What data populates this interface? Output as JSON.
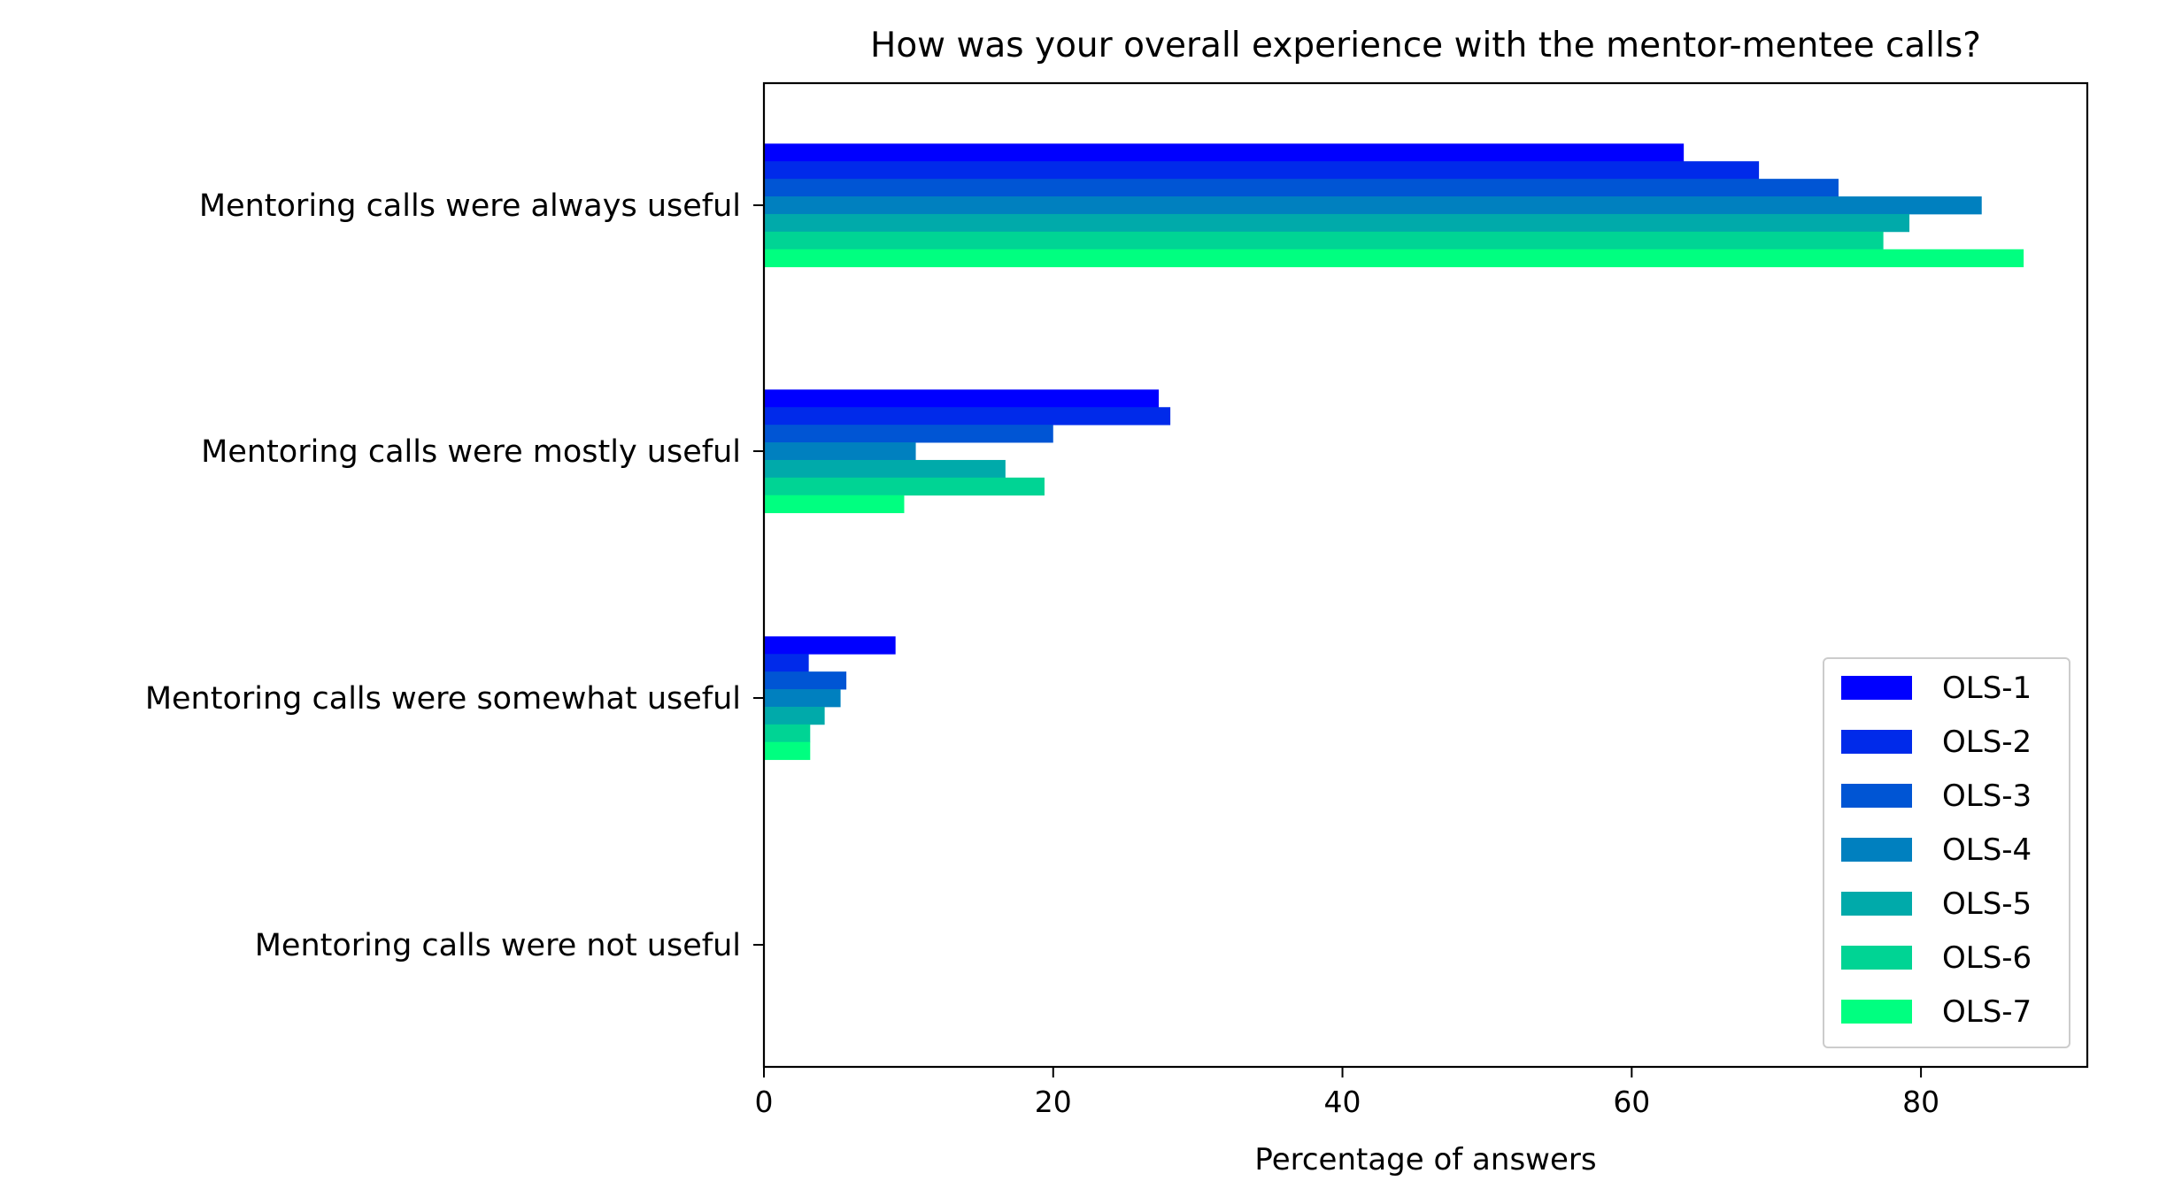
{
  "chart_data": {
    "type": "bar",
    "orientation": "horizontal",
    "title": "How was your overall experience with the mentor-mentee calls?",
    "xlabel": "Percentage of answers",
    "ylabel": "",
    "xlim": [
      0,
      91.5
    ],
    "xticks": [
      0,
      20,
      40,
      60,
      80
    ],
    "grid": false,
    "legend_position": "lower-right",
    "categories": [
      "Mentoring calls were always useful",
      "Mentoring calls were mostly useful",
      "Mentoring calls were somewhat useful",
      "Mentoring calls were not useful"
    ],
    "series": [
      {
        "name": "OLS-1",
        "color": "#0000ff",
        "values": [
          63.6,
          27.3,
          9.1,
          0
        ]
      },
      {
        "name": "OLS-2",
        "color": "#002aea",
        "values": [
          68.8,
          28.1,
          3.1,
          0
        ]
      },
      {
        "name": "OLS-3",
        "color": "#0055d4",
        "values": [
          74.3,
          20.0,
          5.7,
          0
        ]
      },
      {
        "name": "OLS-4",
        "color": "#0080bf",
        "values": [
          84.2,
          10.5,
          5.3,
          0
        ]
      },
      {
        "name": "OLS-5",
        "color": "#00aaaa",
        "values": [
          79.2,
          16.7,
          4.2,
          0
        ]
      },
      {
        "name": "OLS-6",
        "color": "#00d494",
        "values": [
          77.4,
          19.4,
          3.2,
          0
        ]
      },
      {
        "name": "OLS-7",
        "color": "#00ff80",
        "values": [
          87.1,
          9.7,
          3.2,
          0
        ]
      }
    ]
  }
}
